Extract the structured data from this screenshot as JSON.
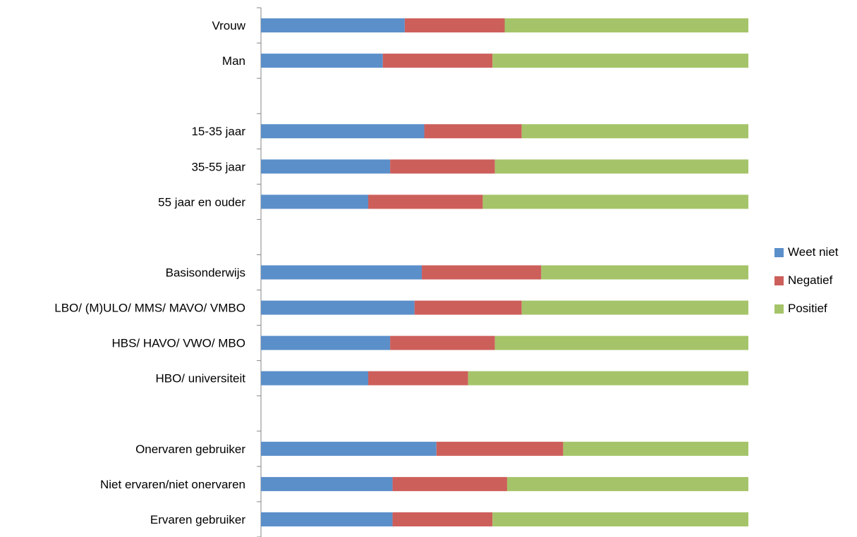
{
  "chart_data": {
    "type": "bar",
    "orientation": "horizontal",
    "stacked": true,
    "percent_stacked": true,
    "xlim": [
      0,
      100
    ],
    "grid": false,
    "legend_position": "right",
    "categories": [
      "Vrouw",
      "Man",
      "",
      "15-35 jaar",
      "35-55 jaar",
      "55 jaar en ouder",
      "",
      "Basisonderwijs",
      "LBO/ (M)ULO/ MMS/ MAVO/ VMBO",
      "HBS/ HAVO/ VWO/ MBO",
      "HBO/ universiteit",
      "",
      "Onervaren gebruiker",
      "Niet ervaren/niet onervaren",
      "Ervaren gebruiker"
    ],
    "series": [
      {
        "name": "Weet niet",
        "color": "#5b8fca",
        "values": [
          29.5,
          25,
          null,
          33.5,
          26.5,
          22,
          null,
          33,
          31.5,
          26.5,
          22,
          null,
          36,
          27,
          27
        ]
      },
      {
        "name": "Negatief",
        "color": "#cd5f5b",
        "values": [
          20.5,
          22.5,
          null,
          20,
          21.5,
          23.5,
          null,
          24.5,
          22,
          21.5,
          20.5,
          null,
          26,
          23.5,
          20.5
        ]
      },
      {
        "name": "Positief",
        "color": "#a5c469",
        "values": [
          50,
          52.5,
          null,
          46.5,
          52,
          54.5,
          null,
          42.5,
          46.5,
          52,
          57.5,
          null,
          38,
          49.5,
          52.5
        ]
      }
    ]
  }
}
